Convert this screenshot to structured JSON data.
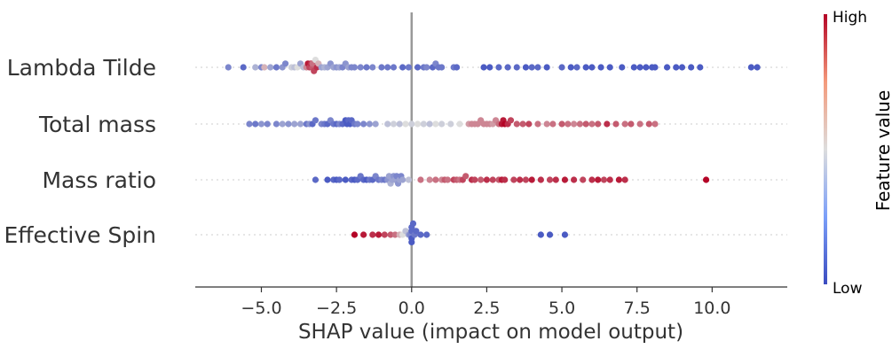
{
  "chart_data": {
    "type": "scatter",
    "subtype": "shap-beeswarm",
    "title": "",
    "xlabel": "SHAP value (impact on model output)",
    "xlim": [
      -7.2,
      12.5
    ],
    "xticks": [
      -5.0,
      -2.5,
      0.0,
      2.5,
      5.0,
      7.5,
      10.0
    ],
    "xtick_labels": [
      "−5.0",
      "−2.5",
      "0.0",
      "2.5",
      "5.0",
      "7.5",
      "10.0"
    ],
    "zero_line": 0.0,
    "grid": false,
    "colormap": "coolwarm",
    "colors": {
      "low": "#3b4cc0",
      "mid": "#dddddd",
      "high": "#b40426"
    },
    "colorbar": {
      "title": "Feature value",
      "high_label": "High",
      "low_label": "Low",
      "placement": "right"
    },
    "features": [
      {
        "name": "Lambda Tilde",
        "points": [
          [
            -6.1,
            0.2
          ],
          [
            -5.6,
            0.1
          ],
          [
            -5.2,
            0.35
          ],
          [
            -5.0,
            0.2
          ],
          [
            -4.9,
            0.6
          ],
          [
            -4.7,
            0.3
          ],
          [
            -4.5,
            0.15
          ],
          [
            -4.3,
            0.25
          ],
          [
            -4.2,
            0.2
          ],
          [
            -4.0,
            0.45
          ],
          [
            -3.9,
            0.4
          ],
          [
            -3.8,
            0.5
          ],
          [
            -3.7,
            0.3
          ],
          [
            -3.6,
            0.4
          ],
          [
            -3.5,
            0.7
          ],
          [
            -3.45,
            0.95
          ],
          [
            -3.4,
            0.85
          ],
          [
            -3.35,
            0.9
          ],
          [
            -3.3,
            0.8
          ],
          [
            -3.3,
            0.75
          ],
          [
            -3.25,
            0.85
          ],
          [
            -3.2,
            0.5
          ],
          [
            -3.15,
            0.9
          ],
          [
            -3.1,
            0.6
          ],
          [
            -3.0,
            0.3
          ],
          [
            -2.9,
            0.35
          ],
          [
            -2.8,
            0.3
          ],
          [
            -2.7,
            0.25
          ],
          [
            -2.6,
            0.3
          ],
          [
            -2.5,
            0.25
          ],
          [
            -2.4,
            0.3
          ],
          [
            -2.3,
            0.2
          ],
          [
            -2.2,
            0.25
          ],
          [
            -2.1,
            0.3
          ],
          [
            -2.0,
            0.2
          ],
          [
            -1.9,
            0.2
          ],
          [
            -1.7,
            0.2
          ],
          [
            -1.5,
            0.15
          ],
          [
            -1.3,
            0.2
          ],
          [
            -1.0,
            0.15
          ],
          [
            -0.8,
            0.15
          ],
          [
            -0.6,
            0.15
          ],
          [
            -0.3,
            0.1
          ],
          [
            -0.1,
            0.15
          ],
          [
            0.2,
            0.1
          ],
          [
            0.4,
            0.15
          ],
          [
            0.5,
            0.2
          ],
          [
            0.7,
            0.1
          ],
          [
            0.8,
            0.2
          ],
          [
            0.9,
            0.15
          ],
          [
            1.0,
            0.15
          ],
          [
            1.4,
            0.15
          ],
          [
            1.5,
            0.1
          ],
          [
            2.4,
            0.05
          ],
          [
            2.6,
            0.05
          ],
          [
            2.9,
            0.1
          ],
          [
            3.2,
            0.1
          ],
          [
            3.5,
            0.1
          ],
          [
            3.8,
            0.05
          ],
          [
            4.0,
            0.1
          ],
          [
            4.2,
            0.1
          ],
          [
            4.5,
            0.05
          ],
          [
            5.0,
            0.1
          ],
          [
            5.3,
            0.05
          ],
          [
            5.5,
            0.1
          ],
          [
            5.8,
            0.05
          ],
          [
            6.0,
            0.05
          ],
          [
            6.3,
            0.05
          ],
          [
            6.6,
            0.05
          ],
          [
            7.0,
            0.05
          ],
          [
            7.4,
            0.05
          ],
          [
            7.6,
            0.05
          ],
          [
            7.8,
            0.05
          ],
          [
            8.0,
            0.05
          ],
          [
            8.1,
            0.05
          ],
          [
            8.5,
            0.05
          ],
          [
            8.8,
            0.05
          ],
          [
            9.0,
            0.05
          ],
          [
            9.3,
            0.05
          ],
          [
            9.6,
            0.05
          ],
          [
            11.3,
            0.05
          ],
          [
            11.5,
            0.05
          ]
        ]
      },
      {
        "name": "Total mass",
        "points": [
          [
            -5.4,
            0.2
          ],
          [
            -5.2,
            0.15
          ],
          [
            -5.0,
            0.25
          ],
          [
            -4.8,
            0.2
          ],
          [
            -4.5,
            0.2
          ],
          [
            -4.3,
            0.3
          ],
          [
            -4.1,
            0.25
          ],
          [
            -3.9,
            0.3
          ],
          [
            -3.7,
            0.3
          ],
          [
            -3.5,
            0.15
          ],
          [
            -3.4,
            0.25
          ],
          [
            -3.3,
            0.1
          ],
          [
            -3.2,
            0.15
          ],
          [
            -3.0,
            0.2
          ],
          [
            -2.9,
            0.15
          ],
          [
            -2.8,
            0.1
          ],
          [
            -2.7,
            0.2
          ],
          [
            -2.6,
            0.15
          ],
          [
            -2.5,
            0.1
          ],
          [
            -2.4,
            0.2
          ],
          [
            -2.3,
            0.1
          ],
          [
            -2.2,
            0.05
          ],
          [
            -2.15,
            0.05
          ],
          [
            -2.1,
            0.1
          ],
          [
            -2.05,
            0.05
          ],
          [
            -2.0,
            0.1
          ],
          [
            -1.9,
            0.15
          ],
          [
            -1.8,
            0.2
          ],
          [
            -1.6,
            0.2
          ],
          [
            -1.4,
            0.25
          ],
          [
            -1.2,
            0.3
          ],
          [
            -0.8,
            0.4
          ],
          [
            -0.6,
            0.45
          ],
          [
            -0.4,
            0.4
          ],
          [
            -0.2,
            0.5
          ],
          [
            0.0,
            0.45
          ],
          [
            0.2,
            0.5
          ],
          [
            0.4,
            0.45
          ],
          [
            0.6,
            0.4
          ],
          [
            0.8,
            0.5
          ],
          [
            1.0,
            0.45
          ],
          [
            1.3,
            0.45
          ],
          [
            1.6,
            0.5
          ],
          [
            1.9,
            0.65
          ],
          [
            2.0,
            0.7
          ],
          [
            2.1,
            0.7
          ],
          [
            2.2,
            0.7
          ],
          [
            2.3,
            0.7
          ],
          [
            2.4,
            0.7
          ],
          [
            2.5,
            0.7
          ],
          [
            2.6,
            0.7
          ],
          [
            2.7,
            0.65
          ],
          [
            2.8,
            0.7
          ],
          [
            2.9,
            0.75
          ],
          [
            3.0,
            0.95
          ],
          [
            3.05,
            0.95
          ],
          [
            3.1,
            1.0
          ],
          [
            3.2,
            0.9
          ],
          [
            3.3,
            0.85
          ],
          [
            3.5,
            0.8
          ],
          [
            3.7,
            0.8
          ],
          [
            3.9,
            0.85
          ],
          [
            4.2,
            0.75
          ],
          [
            4.5,
            0.7
          ],
          [
            4.7,
            0.75
          ],
          [
            5.0,
            0.8
          ],
          [
            5.2,
            0.75
          ],
          [
            5.4,
            0.7
          ],
          [
            5.6,
            0.75
          ],
          [
            5.8,
            0.8
          ],
          [
            6.0,
            0.75
          ],
          [
            6.2,
            0.8
          ],
          [
            6.5,
            0.9
          ],
          [
            6.8,
            0.8
          ],
          [
            7.1,
            0.75
          ],
          [
            7.3,
            0.8
          ],
          [
            7.6,
            0.75
          ],
          [
            7.9,
            0.8
          ],
          [
            8.1,
            0.75
          ]
        ]
      },
      {
        "name": "Mass ratio",
        "points": [
          [
            -3.2,
            0.1
          ],
          [
            -2.8,
            0.05
          ],
          [
            -2.6,
            0.1
          ],
          [
            -2.5,
            0.05
          ],
          [
            -2.4,
            0.1
          ],
          [
            -2.2,
            0.05
          ],
          [
            -2.0,
            0.1
          ],
          [
            -1.9,
            0.05
          ],
          [
            -1.8,
            0.1
          ],
          [
            -1.7,
            0.15
          ],
          [
            -1.6,
            0.1
          ],
          [
            -1.5,
            0.05
          ],
          [
            -1.4,
            0.15
          ],
          [
            -1.3,
            0.1
          ],
          [
            -1.2,
            0.2
          ],
          [
            -1.1,
            0.15
          ],
          [
            -1.0,
            0.2
          ],
          [
            -0.9,
            0.15
          ],
          [
            -0.8,
            0.25
          ],
          [
            -0.75,
            0.3
          ],
          [
            -0.7,
            0.35
          ],
          [
            -0.65,
            0.3
          ],
          [
            -0.6,
            0.25
          ],
          [
            -0.55,
            0.3
          ],
          [
            -0.5,
            0.2
          ],
          [
            -0.45,
            0.25
          ],
          [
            -0.4,
            0.3
          ],
          [
            -0.35,
            0.2
          ],
          [
            -0.3,
            0.3
          ],
          [
            -0.1,
            0.4
          ],
          [
            0.3,
            0.75
          ],
          [
            0.6,
            0.7
          ],
          [
            0.8,
            0.75
          ],
          [
            1.0,
            0.7
          ],
          [
            1.1,
            0.8
          ],
          [
            1.2,
            0.75
          ],
          [
            1.4,
            0.85
          ],
          [
            1.5,
            0.8
          ],
          [
            1.6,
            0.75
          ],
          [
            1.7,
            0.85
          ],
          [
            1.8,
            0.8
          ],
          [
            2.0,
            0.9
          ],
          [
            2.1,
            0.85
          ],
          [
            2.3,
            0.8
          ],
          [
            2.5,
            0.9
          ],
          [
            2.7,
            0.85
          ],
          [
            2.9,
            0.8
          ],
          [
            3.0,
            0.95
          ],
          [
            3.1,
            0.9
          ],
          [
            3.4,
            0.85
          ],
          [
            3.6,
            0.9
          ],
          [
            3.8,
            0.85
          ],
          [
            4.0,
            0.95
          ],
          [
            4.3,
            0.9
          ],
          [
            4.6,
            0.85
          ],
          [
            4.8,
            0.9
          ],
          [
            5.1,
            0.95
          ],
          [
            5.4,
            0.9
          ],
          [
            5.7,
            0.85
          ],
          [
            6.0,
            0.9
          ],
          [
            6.2,
            0.95
          ],
          [
            6.4,
            0.85
          ],
          [
            6.6,
            0.9
          ],
          [
            6.9,
            0.95
          ],
          [
            7.1,
            0.9
          ],
          [
            9.8,
            1.0
          ]
        ]
      },
      {
        "name": "Effective Spin",
        "points": [
          [
            -1.9,
            1.0
          ],
          [
            -1.6,
            0.95
          ],
          [
            -1.3,
            0.9
          ],
          [
            -1.1,
            0.95
          ],
          [
            -0.9,
            0.85
          ],
          [
            -0.7,
            0.8
          ],
          [
            -0.55,
            0.75
          ],
          [
            -0.4,
            0.6
          ],
          [
            -0.3,
            0.5
          ],
          [
            -0.2,
            0.4
          ],
          [
            -0.1,
            0.3
          ],
          [
            -0.05,
            0.2
          ],
          [
            0.0,
            0.1
          ],
          [
            0.0,
            0.05
          ],
          [
            0.0,
            0.1
          ],
          [
            0.0,
            0.05
          ],
          [
            0.05,
            0.1
          ],
          [
            0.1,
            0.15
          ],
          [
            0.15,
            0.1
          ],
          [
            0.3,
            0.1
          ],
          [
            0.5,
            0.1
          ],
          [
            4.3,
            0.05
          ],
          [
            4.6,
            0.05
          ],
          [
            5.1,
            0.05
          ]
        ]
      }
    ]
  }
}
